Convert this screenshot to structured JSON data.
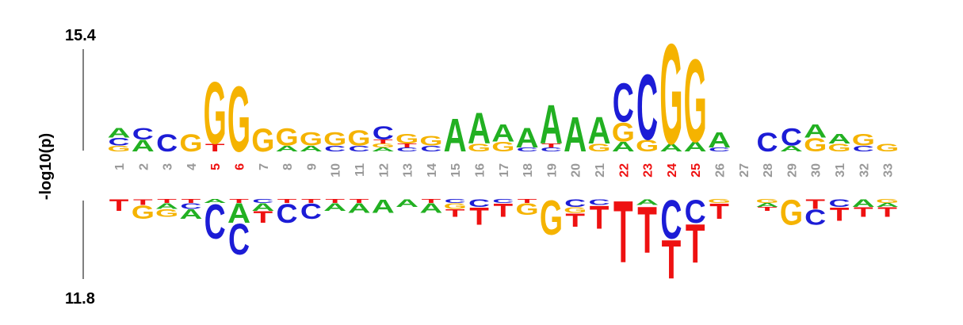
{
  "chart_data": {
    "type": "sequence-logo",
    "ylabel": "-log10(p)",
    "y_top_max": "15.4",
    "y_bottom_max": "11.8",
    "colors": {
      "A": "#22b022",
      "C": "#1c1cd6",
      "G": "#f5b300",
      "T": "#ee1111",
      "highlight": "#ee1111",
      "normal": "#999999",
      "axis": "#000000"
    },
    "positions": [
      {
        "label": "1",
        "highlight": false,
        "top": [
          [
            "G",
            0.015
          ],
          [
            "C",
            0.02
          ],
          [
            "A",
            0.025
          ]
        ],
        "bottom": [
          [
            "T",
            0.03
          ]
        ]
      },
      {
        "label": "2",
        "highlight": false,
        "top": [
          [
            "A",
            0.03
          ],
          [
            "C",
            0.03
          ]
        ],
        "bottom": [
          [
            "T",
            0.015
          ],
          [
            "G",
            0.035
          ]
        ]
      },
      {
        "label": "3",
        "highlight": false,
        "top": [
          [
            "C",
            0.045
          ]
        ],
        "bottom": [
          [
            "T",
            0.01
          ],
          [
            "A",
            0.015
          ],
          [
            "G",
            0.02
          ]
        ]
      },
      {
        "label": "4",
        "highlight": false,
        "top": [
          [
            "G",
            0.045
          ]
        ],
        "bottom": [
          [
            "T",
            0.01
          ],
          [
            "C",
            0.015
          ],
          [
            "A",
            0.025
          ]
        ]
      },
      {
        "label": "5",
        "highlight": true,
        "top": [
          [
            "T",
            0.02
          ],
          [
            "G",
            0.16
          ]
        ],
        "bottom": [
          [
            "A",
            0.01
          ],
          [
            "C",
            0.09
          ]
        ]
      },
      {
        "label": "6",
        "highlight": true,
        "top": [
          [
            "G",
            0.17
          ]
        ],
        "bottom": [
          [
            "T",
            0.01
          ],
          [
            "A",
            0.05
          ],
          [
            "C",
            0.08
          ]
        ]
      },
      {
        "label": "7",
        "highlight": false,
        "top": [
          [
            "G",
            0.06
          ]
        ],
        "bottom": [
          [
            "C",
            0.01
          ],
          [
            "A",
            0.02
          ],
          [
            "T",
            0.03
          ]
        ]
      },
      {
        "label": "8",
        "highlight": false,
        "top": [
          [
            "A",
            0.015
          ],
          [
            "G",
            0.045
          ]
        ],
        "bottom": [
          [
            "T",
            0.01
          ],
          [
            "C",
            0.05
          ]
        ]
      },
      {
        "label": "9",
        "highlight": false,
        "top": [
          [
            "A",
            0.015
          ],
          [
            "G",
            0.035
          ]
        ],
        "bottom": [
          [
            "T",
            0.01
          ],
          [
            "C",
            0.04
          ]
        ]
      },
      {
        "label": "10",
        "highlight": false,
        "top": [
          [
            "C",
            0.015
          ],
          [
            "G",
            0.035
          ]
        ],
        "bottom": [
          [
            "T",
            0.01
          ],
          [
            "A",
            0.02
          ]
        ]
      },
      {
        "label": "11",
        "highlight": false,
        "top": [
          [
            "C",
            0.015
          ],
          [
            "G",
            0.04
          ]
        ],
        "bottom": [
          [
            "T",
            0.01
          ],
          [
            "A",
            0.025
          ]
        ]
      },
      {
        "label": "12",
        "highlight": false,
        "top": [
          [
            "A",
            0.01
          ],
          [
            "G",
            0.01
          ],
          [
            "T",
            0.01
          ],
          [
            "C",
            0.035
          ]
        ],
        "bottom": [
          [
            "A",
            0.035
          ]
        ]
      },
      {
        "label": "13",
        "highlight": false,
        "top": [
          [
            "C",
            0.01
          ],
          [
            "T",
            0.01
          ],
          [
            "G",
            0.025
          ]
        ],
        "bottom": [
          [
            "A",
            0.02
          ]
        ]
      },
      {
        "label": "14",
        "highlight": false,
        "top": [
          [
            "C",
            0.015
          ],
          [
            "G",
            0.025
          ]
        ],
        "bottom": [
          [
            "T",
            0.01
          ],
          [
            "A",
            0.025
          ]
        ]
      },
      {
        "label": "15",
        "highlight": false,
        "top": [
          [
            "A",
            0.085
          ]
        ],
        "bottom": [
          [
            "C",
            0.01
          ],
          [
            "G",
            0.015
          ],
          [
            "T",
            0.02
          ]
        ]
      },
      {
        "label": "16",
        "highlight": false,
        "top": [
          [
            "G",
            0.02
          ],
          [
            "A",
            0.08
          ]
        ],
        "bottom": [
          [
            "C",
            0.02
          ],
          [
            "T",
            0.045
          ]
        ]
      },
      {
        "label": "17",
        "highlight": false,
        "top": [
          [
            "G",
            0.025
          ],
          [
            "A",
            0.045
          ]
        ],
        "bottom": [
          [
            "C",
            0.01
          ],
          [
            "T",
            0.035
          ]
        ]
      },
      {
        "label": "18",
        "highlight": false,
        "top": [
          [
            "C",
            0.01
          ],
          [
            "A",
            0.05
          ]
        ],
        "bottom": [
          [
            "T",
            0.01
          ],
          [
            "G",
            0.03
          ]
        ]
      },
      {
        "label": "19",
        "highlight": false,
        "top": [
          [
            "C",
            0.01
          ],
          [
            "T",
            0.01
          ],
          [
            "A",
            0.1
          ]
        ],
        "bottom": [
          [
            "G",
            0.09
          ]
        ]
      },
      {
        "label": "20",
        "highlight": false,
        "top": [
          [
            "A",
            0.09
          ]
        ],
        "bottom": [
          [
            "C",
            0.02
          ],
          [
            "G",
            0.015
          ],
          [
            "T",
            0.035
          ]
        ]
      },
      {
        "label": "21",
        "highlight": false,
        "top": [
          [
            "G",
            0.02
          ],
          [
            "A",
            0.07
          ]
        ],
        "bottom": [
          [
            "C",
            0.015
          ],
          [
            "T",
            0.06
          ]
        ]
      },
      {
        "label": "22",
        "highlight": true,
        "top": [
          [
            "A",
            0.025
          ],
          [
            "G",
            0.05
          ],
          [
            "C",
            0.1
          ]
        ],
        "bottom": [
          [
            "T",
            0.16
          ]
        ]
      },
      {
        "label": "23",
        "highlight": true,
        "top": [
          [
            "G",
            0.03
          ],
          [
            "C",
            0.17
          ]
        ],
        "bottom": [
          [
            "A",
            0.015
          ],
          [
            "T",
            0.12
          ]
        ]
      },
      {
        "label": "24",
        "highlight": true,
        "top": [
          [
            "A",
            0.02
          ],
          [
            "G",
            0.26
          ]
        ],
        "bottom": [
          [
            "C",
            0.1
          ],
          [
            "T",
            0.1
          ]
        ]
      },
      {
        "label": "25",
        "highlight": true,
        "top": [
          [
            "A",
            0.025
          ],
          [
            "G",
            0.215
          ]
        ],
        "bottom": [
          [
            "C",
            0.06
          ],
          [
            "T",
            0.1
          ]
        ]
      },
      {
        "label": "26",
        "highlight": false,
        "top": [
          [
            "C",
            0.01
          ],
          [
            "A",
            0.04
          ]
        ],
        "bottom": [
          [
            "G",
            0.01
          ],
          [
            "T",
            0.04
          ]
        ]
      },
      {
        "label": "27",
        "highlight": false,
        "top": [],
        "bottom": []
      },
      {
        "label": "28",
        "highlight": false,
        "top": [
          [
            "C",
            0.05
          ]
        ],
        "bottom": [
          [
            "G",
            0.01
          ],
          [
            "A",
            0.01
          ],
          [
            "T",
            0.01
          ]
        ]
      },
      {
        "label": "29",
        "highlight": false,
        "top": [
          [
            "A",
            0.015
          ],
          [
            "C",
            0.045
          ]
        ],
        "bottom": [
          [
            "G",
            0.065
          ]
        ]
      },
      {
        "label": "30",
        "highlight": false,
        "top": [
          [
            "G",
            0.035
          ],
          [
            "A",
            0.035
          ]
        ],
        "bottom": [
          [
            "T",
            0.025
          ],
          [
            "C",
            0.04
          ]
        ]
      },
      {
        "label": "31",
        "highlight": false,
        "top": [
          [
            "G",
            0.02
          ],
          [
            "A",
            0.025
          ]
        ],
        "bottom": [
          [
            "C",
            0.02
          ],
          [
            "T",
            0.035
          ]
        ]
      },
      {
        "label": "32",
        "highlight": false,
        "top": [
          [
            "C",
            0.015
          ],
          [
            "G",
            0.03
          ]
        ],
        "bottom": [
          [
            "A",
            0.02
          ],
          [
            "T",
            0.025
          ]
        ]
      },
      {
        "label": "33",
        "highlight": false,
        "top": [
          [
            "G",
            0.02
          ]
        ],
        "bottom": [
          [
            "G",
            0.01
          ],
          [
            "A",
            0.01
          ],
          [
            "T",
            0.025
          ]
        ]
      }
    ]
  }
}
